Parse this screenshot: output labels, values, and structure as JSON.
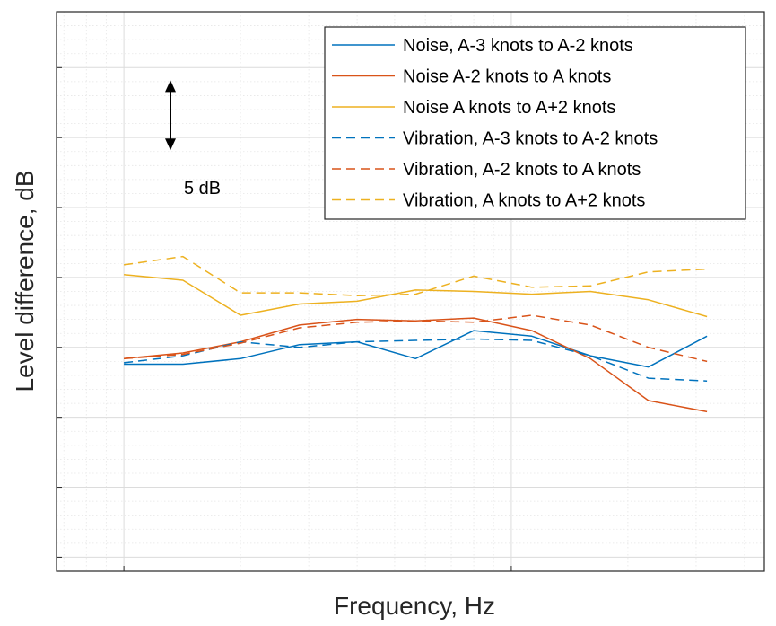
{
  "chart_data": {
    "type": "line",
    "title": "",
    "xlabel": "Frequency, Hz",
    "ylabel": "Level difference, dB",
    "x_scale": "log",
    "x": [
      1,
      1.42,
      2,
      2.84,
      4,
      5.66,
      8,
      11.3,
      16,
      22.6,
      32
    ],
    "xlim": [
      0.67,
      45
    ],
    "ylim": [
      -16,
      24
    ],
    "x_tick_labels": [],
    "y_tick_labels": [],
    "grid": true,
    "legend_position": "top-right",
    "series": [
      {
        "name": "Noise, A-3 knots to A-2 knots",
        "color": "#0072BD",
        "dash": "solid",
        "values": [
          -1.2,
          -1.2,
          -0.8,
          0.2,
          0.4,
          -0.8,
          1.2,
          0.8,
          -0.6,
          -1.4,
          0.8
        ]
      },
      {
        "name": "Noise A-2 knots to A knots",
        "color": "#D95319",
        "dash": "solid",
        "values": [
          -0.8,
          -0.4,
          0.4,
          1.6,
          2.0,
          1.9,
          2.1,
          1.2,
          -0.8,
          -3.8,
          -4.6
        ]
      },
      {
        "name": "Noise A knots to A+2 knots",
        "color": "#EDB120",
        "dash": "solid",
        "values": [
          5.2,
          4.8,
          2.3,
          3.1,
          3.3,
          4.1,
          4.0,
          3.8,
          4.0,
          3.4,
          2.2
        ]
      },
      {
        "name": "Vibration, A-3 knots to A-2 knots",
        "color": "#0072BD",
        "dash": "dashed",
        "values": [
          -1.1,
          -0.6,
          0.4,
          0.0,
          0.4,
          0.5,
          0.6,
          0.5,
          -0.6,
          -2.2,
          -2.4
        ]
      },
      {
        "name": "Vibration, A-2 knots to A knots",
        "color": "#D95319",
        "dash": "dashed",
        "values": [
          -0.8,
          -0.5,
          0.3,
          1.4,
          1.8,
          1.9,
          1.8,
          2.3,
          1.6,
          0.0,
          -1.0
        ]
      },
      {
        "name": "Vibration, A knots to A+2 knots",
        "color": "#EDB120",
        "dash": "dashed",
        "values": [
          5.9,
          6.5,
          3.9,
          3.9,
          3.7,
          3.8,
          5.1,
          4.3,
          4.4,
          5.4,
          5.6
        ]
      }
    ],
    "annotation": {
      "label": "5 dB",
      "span_db": 5,
      "y_from": 14.1,
      "y_to": 19.1
    }
  }
}
